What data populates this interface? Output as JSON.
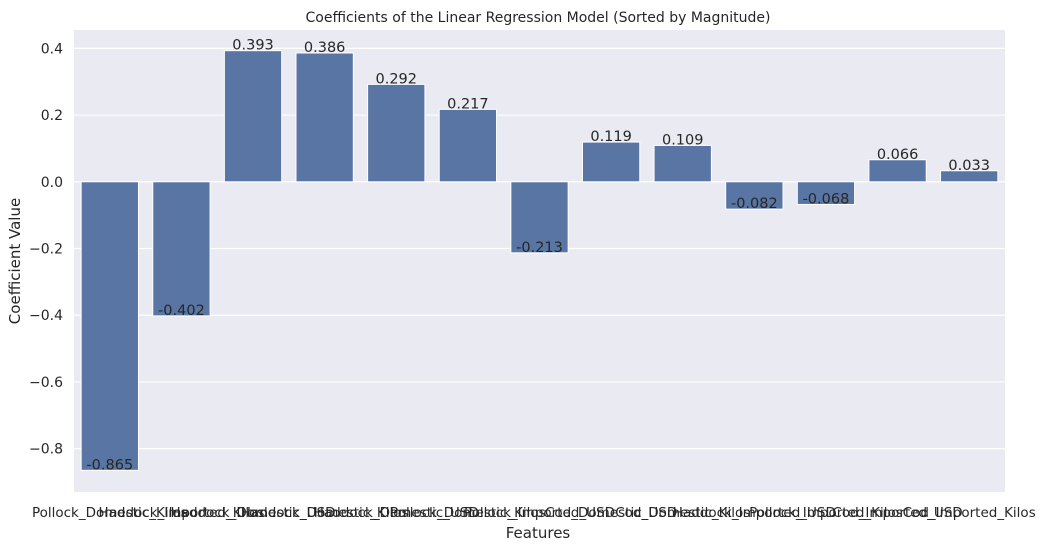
{
  "chart_data": {
    "type": "bar",
    "title": "Coefficients of the Linear Regression Model (Sorted by Magnitude)",
    "xlabel": "Features",
    "ylabel": "Coefficient Value",
    "ylim": [
      -0.93,
      0.455
    ],
    "yticks": [
      -0.8,
      -0.6,
      -0.4,
      -0.2,
      0.0,
      0.2,
      0.4
    ],
    "ytick_labels": [
      "−0.8",
      "−0.6",
      "−0.4",
      "−0.2",
      "0.0",
      "0.2",
      "0.4"
    ],
    "grid": true,
    "categories": [
      "Pollock_Domestic_Kilos",
      "Haddock_Imported_Kilos",
      "Haddock_Domestic_USD",
      "Haddock_Domestic_Kilos",
      "Haddock_Domestic_USD",
      "Pollock_Domestic_Kilos",
      "Pollock_Imported_USD",
      "Cod_Domestic_USD",
      "Cod_Domestic_Kilos",
      "Haddock_Imported_USD",
      "Pollock_Imported_Kilos",
      "Cod_Imported_USD",
      "Cod_Imported_Kilos"
    ],
    "values": [
      -0.865,
      -0.402,
      0.393,
      0.386,
      0.292,
      0.217,
      -0.213,
      0.119,
      0.109,
      -0.082,
      -0.068,
      0.066,
      0.033
    ],
    "value_labels": [
      "-0.865",
      "-0.402",
      "0.393",
      "0.386",
      "0.292",
      "0.217",
      "-0.213",
      "0.119",
      "0.109",
      "-0.082",
      "-0.068",
      "0.066",
      "0.033"
    ]
  },
  "colors": {
    "plot_background": "#eaeaf2",
    "bar": "#5875a4",
    "grid": "#ffffff",
    "text": "#262626"
  }
}
